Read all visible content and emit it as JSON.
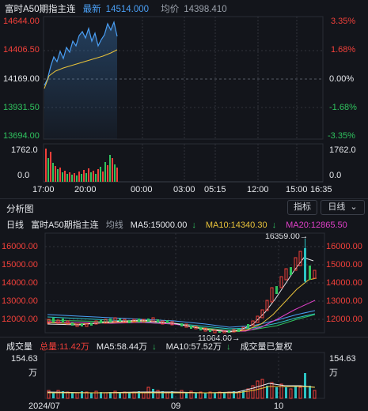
{
  "intraday": {
    "title": "富时A50期指主连",
    "latest_label": "最新",
    "latest_value": "14514.000",
    "avg_label": "均价",
    "avg_value": "14398.410",
    "price_labels": [
      "14644.00",
      "14406.50",
      "14169.00",
      "13931.50",
      "13694.00"
    ],
    "pct_labels": [
      "3.35%",
      "1.68%",
      "0.00%",
      "-1.68%",
      "-3.35%"
    ],
    "vol_labels": [
      "1762.0",
      "0.0"
    ],
    "time_labels": [
      "17:00",
      "20:00",
      "00:00",
      "03:00",
      "05:15",
      "12:00",
      "15:00",
      "16:35"
    ]
  },
  "analysis": {
    "title": "分析图",
    "indicator_btn": "指标",
    "period_btn": "日线",
    "chevron": "chevron-down-icon"
  },
  "daily": {
    "period_label": "日线",
    "title": "富时A50期指主连",
    "ma_type": "均线",
    "ma5": "MA5:15000.00",
    "ma10": "MA10:14340.30",
    "ma20": "MA20:12865.50",
    "price_labels": [
      "16000.00",
      "15000.00",
      "14000.00",
      "13000.00",
      "12000.00"
    ],
    "high_annotation": "16359.00",
    "low_annotation": "11064.00"
  },
  "volume": {
    "label": "成交量",
    "total": "总量:11.42万",
    "ma5": "MA5:58.44万",
    "ma10": "MA10:57.52万",
    "note": "成交量已复权",
    "top_value": "154.63",
    "unit": "万",
    "date_labels": [
      "2024/07",
      "09",
      "10"
    ]
  },
  "colors": {
    "up": "#f2403a",
    "down": "#2fc35e",
    "ma5": "#e6e8ec",
    "ma10": "#e8c23a",
    "ma20": "#e040c8",
    "price_line": "#4a9ff5"
  }
}
